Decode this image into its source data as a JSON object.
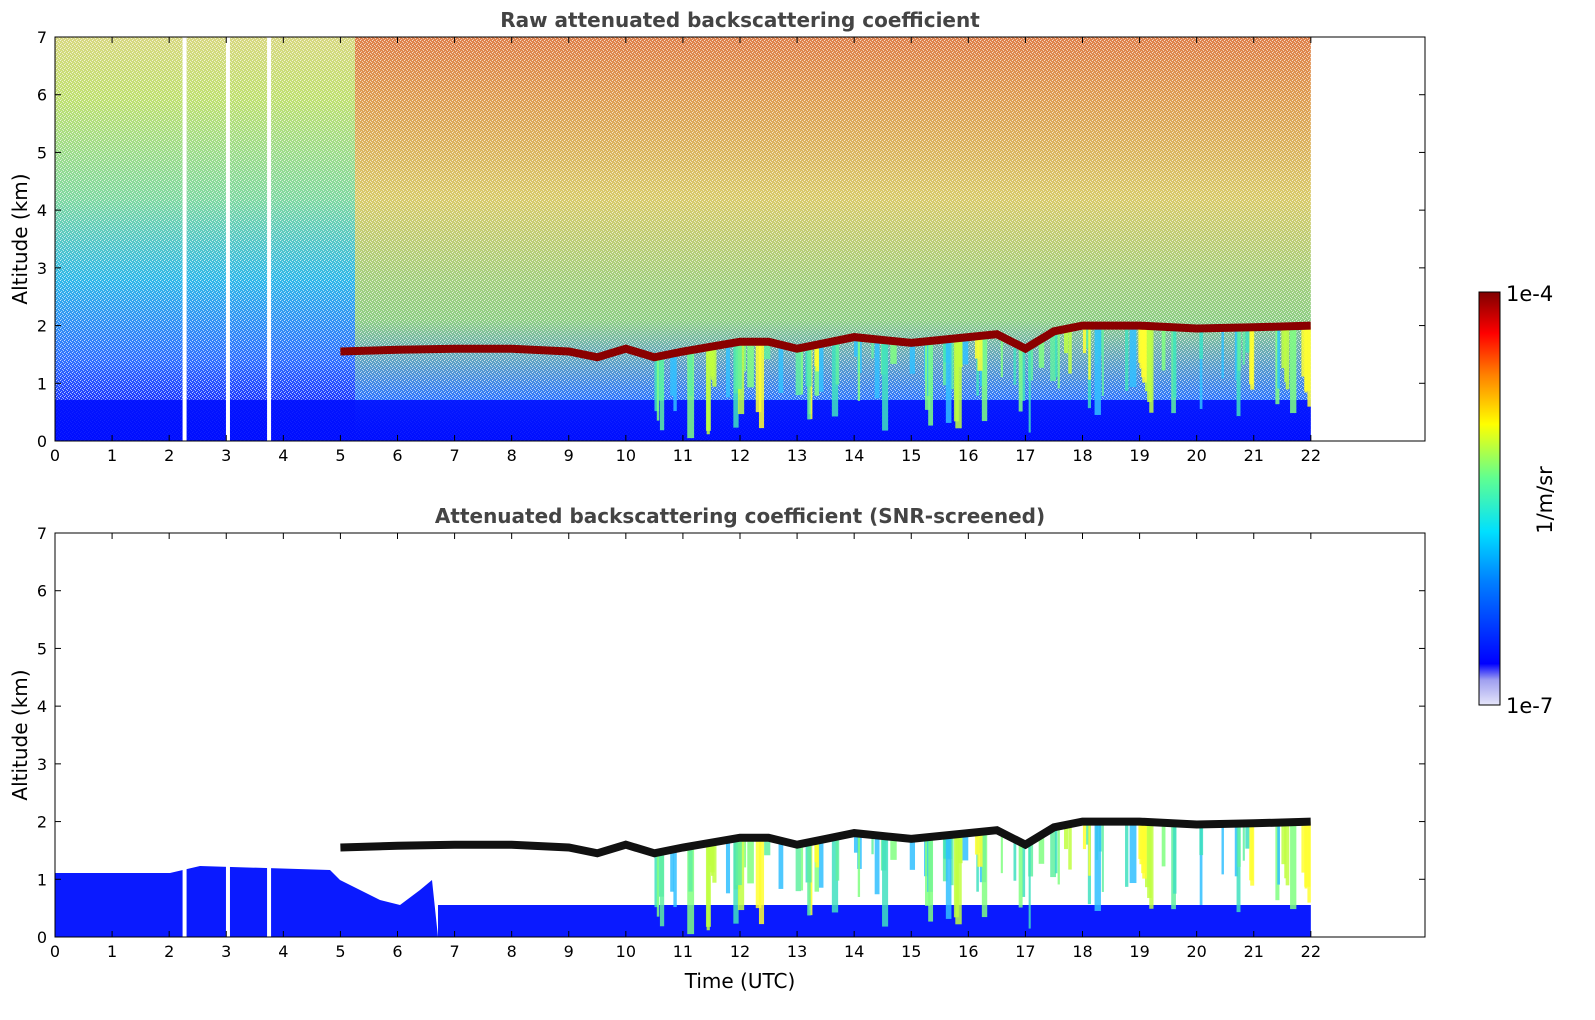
{
  "chart_data": [
    {
      "type": "heatmap",
      "title": "Raw attenuated backscattering coefficient",
      "xlabel": "",
      "ylabel": "Altitude (km)",
      "xlim": [
        0,
        24
      ],
      "ylim": [
        0,
        7
      ],
      "x_ticks": [
        "0",
        "1",
        "2",
        "3",
        "4",
        "5",
        "6",
        "7",
        "8",
        "9",
        "10",
        "11",
        "12",
        "13",
        "14",
        "15",
        "16",
        "17",
        "18",
        "19",
        "20",
        "21",
        "22"
      ],
      "y_ticks": [
        "0",
        "1",
        "2",
        "3",
        "4",
        "5",
        "6",
        "7"
      ],
      "data_end_hour": 22,
      "missing_profiles_hours": [
        2.27,
        3.03,
        3.75
      ],
      "cloud_base_km": [
        [
          5.0,
          1.55
        ],
        [
          6.0,
          1.58
        ],
        [
          7.0,
          1.6
        ],
        [
          8.0,
          1.6
        ],
        [
          9.0,
          1.55
        ],
        [
          9.5,
          1.45
        ],
        [
          10.0,
          1.6
        ],
        [
          10.5,
          1.45
        ],
        [
          11.0,
          1.55
        ],
        [
          12.0,
          1.72
        ],
        [
          12.5,
          1.72
        ],
        [
          13.0,
          1.6
        ],
        [
          13.5,
          1.7
        ],
        [
          14.0,
          1.8
        ],
        [
          15.0,
          1.7
        ],
        [
          16.0,
          1.8
        ],
        [
          16.5,
          1.85
        ],
        [
          17.0,
          1.6
        ],
        [
          17.5,
          1.9
        ],
        [
          18.0,
          2.0
        ],
        [
          19.0,
          2.0
        ],
        [
          20.0,
          1.95
        ],
        [
          21.0,
          1.97
        ],
        [
          22.0,
          2.0
        ]
      ]
    },
    {
      "type": "heatmap",
      "title": "Attenuated backscattering coefficient (SNR-screened)",
      "xlabel": "Time (UTC)",
      "ylabel": "Altitude (km)",
      "xlim": [
        0,
        24
      ],
      "ylim": [
        0,
        7
      ],
      "x_ticks": [
        "0",
        "1",
        "2",
        "3",
        "4",
        "5",
        "6",
        "7",
        "8",
        "9",
        "10",
        "11",
        "12",
        "13",
        "14",
        "15",
        "16",
        "17",
        "18",
        "19",
        "20",
        "21",
        "22"
      ],
      "y_ticks": [
        "0",
        "1",
        "2",
        "3",
        "4",
        "5",
        "6",
        "7"
      ],
      "data_end_hour": 22,
      "missing_profiles_hours": [
        2.27,
        3.03,
        3.75
      ]
    }
  ],
  "colorbar": {
    "max_label": "1e-4",
    "min_label": "1e-7",
    "unit_label": "1/m/sr",
    "colors": [
      "#e6e6fa",
      "#b0b0f0",
      "#0000ff",
      "#0080ff",
      "#00ffff",
      "#80ff80",
      "#ffff00",
      "#ff8000",
      "#ff0000",
      "#800000"
    ]
  }
}
